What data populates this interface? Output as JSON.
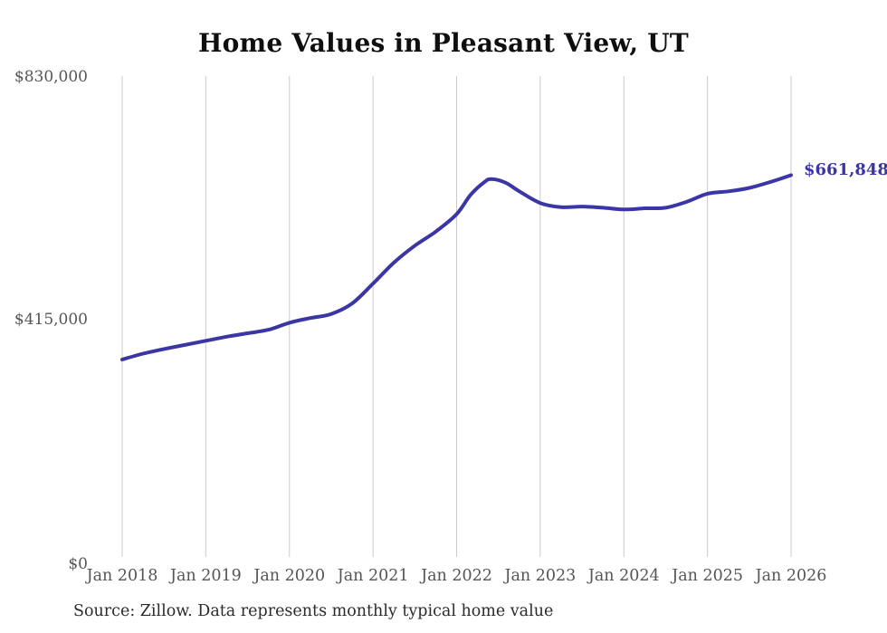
{
  "title": "Home Values in Pleasant View, UT",
  "source_note": "Source: Zillow. Data represents monthly typical home value",
  "latest_value_label": "$661,848",
  "colors": {
    "line": "#3b35a6",
    "grid": "#cbcbcb",
    "axis_text": "#555555",
    "title_text": "#0f0f0f",
    "source_text": "#2b2b2b",
    "end_label_text": "#3b35a6",
    "background": "#ffffff"
  },
  "chart_data": {
    "type": "line",
    "title": "Home Values in Pleasant View, UT",
    "xlabel": "",
    "ylabel": "",
    "grid": "vertical-only",
    "legend": "none",
    "ylim": [
      0,
      830000
    ],
    "x_range_months": [
      "2018-01",
      "2026-01"
    ],
    "y_ticks": [
      {
        "label": "$830,000",
        "value": 830000
      },
      {
        "label": "$415,000",
        "value": 415000
      },
      {
        "label": "$0",
        "value": 0
      }
    ],
    "x_ticks": [
      {
        "label": "Jan 2018",
        "month": "2018-01"
      },
      {
        "label": "Jan 2019",
        "month": "2019-01"
      },
      {
        "label": "Jan 2020",
        "month": "2020-01"
      },
      {
        "label": "Jan 2021",
        "month": "2021-01"
      },
      {
        "label": "Jan 2022",
        "month": "2022-01"
      },
      {
        "label": "Jan 2023",
        "month": "2023-01"
      },
      {
        "label": "Jan 2024",
        "month": "2024-01"
      },
      {
        "label": "Jan 2025",
        "month": "2025-01"
      },
      {
        "label": "Jan 2026",
        "month": "2026-01"
      }
    ],
    "series": [
      {
        "name": "Monthly typical home value",
        "points": [
          [
            "2018-01",
            346000
          ],
          [
            "2018-04",
            356000
          ],
          [
            "2018-07",
            364000
          ],
          [
            "2018-10",
            371000
          ],
          [
            "2019-01",
            378000
          ],
          [
            "2019-04",
            385000
          ],
          [
            "2019-07",
            391000
          ],
          [
            "2019-10",
            397000
          ],
          [
            "2020-01",
            409000
          ],
          [
            "2020-04",
            417000
          ],
          [
            "2020-07",
            424000
          ],
          [
            "2020-10",
            442000
          ],
          [
            "2021-01",
            476000
          ],
          [
            "2021-04",
            512000
          ],
          [
            "2021-07",
            541000
          ],
          [
            "2021-10",
            565000
          ],
          [
            "2022-01",
            595000
          ],
          [
            "2022-03",
            628000
          ],
          [
            "2022-05",
            650000
          ],
          [
            "2022-06",
            655000
          ],
          [
            "2022-08",
            649000
          ],
          [
            "2022-10",
            634000
          ],
          [
            "2023-01",
            614000
          ],
          [
            "2023-04",
            607000
          ],
          [
            "2023-07",
            608000
          ],
          [
            "2023-10",
            606000
          ],
          [
            "2024-01",
            603000
          ],
          [
            "2024-04",
            605000
          ],
          [
            "2024-07",
            606000
          ],
          [
            "2024-10",
            616000
          ],
          [
            "2025-01",
            630000
          ],
          [
            "2025-04",
            634000
          ],
          [
            "2025-07",
            640000
          ],
          [
            "2025-10",
            650000
          ],
          [
            "2026-01",
            661848
          ]
        ]
      }
    ],
    "end_annotation": {
      "text": "$661,848",
      "value": 661848,
      "month": "2026-01"
    }
  }
}
